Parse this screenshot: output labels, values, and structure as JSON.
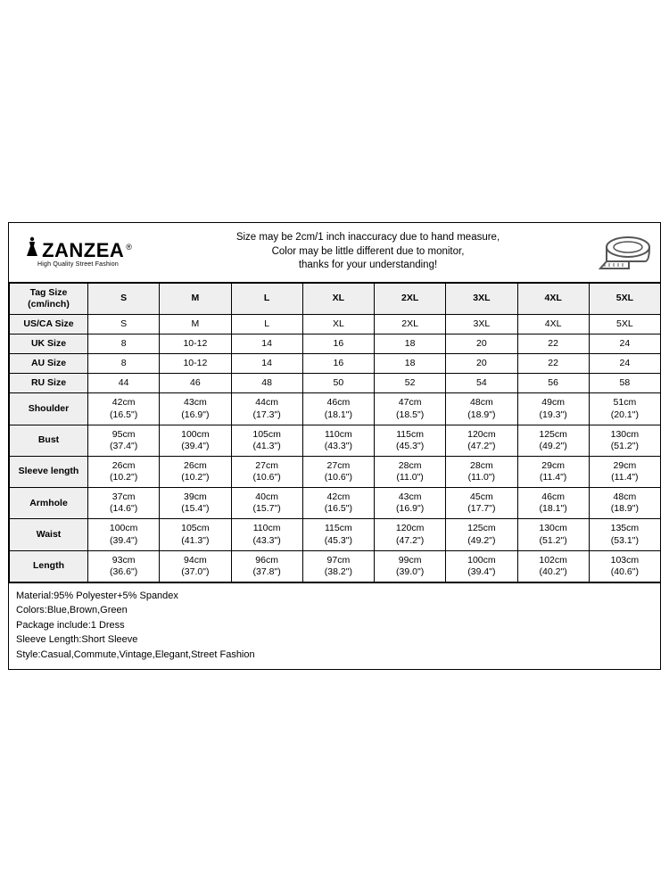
{
  "brand": {
    "name": "ZANZEA",
    "registered": "®",
    "tagline": "High Quality Street Fashion"
  },
  "notice": {
    "line1": "Size may be 2cm/1 inch inaccuracy due to hand measure,",
    "line2": "Color may be little different due to monitor,",
    "line3": "thanks for your understanding!"
  },
  "sizes": [
    "S",
    "M",
    "L",
    "XL",
    "2XL",
    "3XL",
    "4XL",
    "5XL"
  ],
  "header_tag_l1": "Tag Size",
  "header_tag_l2": "(cm/inch)",
  "rows_single": [
    {
      "label": "US/CA Size",
      "vals": [
        "S",
        "M",
        "L",
        "XL",
        "2XL",
        "3XL",
        "4XL",
        "5XL"
      ]
    },
    {
      "label": "UK Size",
      "vals": [
        "8",
        "10-12",
        "14",
        "16",
        "18",
        "20",
        "22",
        "24"
      ]
    },
    {
      "label": "AU Size",
      "vals": [
        "8",
        "10-12",
        "14",
        "16",
        "18",
        "20",
        "22",
        "24"
      ]
    },
    {
      "label": "RU Size",
      "vals": [
        "44",
        "46",
        "48",
        "50",
        "52",
        "54",
        "56",
        "58"
      ]
    }
  ],
  "rows_measure": [
    {
      "label": "Shoulder",
      "cm": [
        "42cm",
        "43cm",
        "44cm",
        "46cm",
        "47cm",
        "48cm",
        "49cm",
        "51cm"
      ],
      "in": [
        "(16.5\")",
        "(16.9\")",
        "(17.3\")",
        "(18.1\")",
        "(18.5\")",
        "(18.9\")",
        "(19.3\")",
        "(20.1\")"
      ]
    },
    {
      "label": "Bust",
      "cm": [
        "95cm",
        "100cm",
        "105cm",
        "110cm",
        "115cm",
        "120cm",
        "125cm",
        "130cm"
      ],
      "in": [
        "(37.4\")",
        "(39.4\")",
        "(41.3\")",
        "(43.3\")",
        "(45.3\")",
        "(47.2\")",
        "(49.2\")",
        "(51.2\")"
      ]
    },
    {
      "label": "Sleeve length",
      "cm": [
        "26cm",
        "26cm",
        "27cm",
        "27cm",
        "28cm",
        "28cm",
        "29cm",
        "29cm"
      ],
      "in": [
        "(10.2\")",
        "(10.2\")",
        "(10.6\")",
        "(10.6\")",
        "(11.0\")",
        "(11.0\")",
        "(11.4\")",
        "(11.4\")"
      ]
    },
    {
      "label": "Armhole",
      "cm": [
        "37cm",
        "39cm",
        "40cm",
        "42cm",
        "43cm",
        "45cm",
        "46cm",
        "48cm"
      ],
      "in": [
        "(14.6\")",
        "(15.4\")",
        "(15.7\")",
        "(16.5\")",
        "(16.9\")",
        "(17.7\")",
        "(18.1\")",
        "(18.9\")"
      ]
    },
    {
      "label": "Waist",
      "cm": [
        "100cm",
        "105cm",
        "110cm",
        "115cm",
        "120cm",
        "125cm",
        "130cm",
        "135cm"
      ],
      "in": [
        "(39.4\")",
        "(41.3\")",
        "(43.3\")",
        "(45.3\")",
        "(47.2\")",
        "(49.2\")",
        "(51.2\")",
        "(53.1\")"
      ]
    },
    {
      "label": "Length",
      "cm": [
        "93cm",
        "94cm",
        "96cm",
        "97cm",
        "99cm",
        "100cm",
        "102cm",
        "103cm"
      ],
      "in": [
        "(36.6\")",
        "(37.0\")",
        "(37.8\")",
        "(38.2\")",
        "(39.0\")",
        "(39.4\")",
        "(40.2\")",
        "(40.6\")"
      ]
    }
  ],
  "details": [
    "Material:95% Polyester+5% Spandex",
    "Colors:Blue,Brown,Green",
    "Package include:1 Dress",
    "Sleeve Length:Short Sleeve",
    "Style:Casual,Commute,Vintage,Elegant,Street Fashion"
  ],
  "style": {
    "border_color": "#000000",
    "header_bg": "#efefef",
    "background": "#ffffff",
    "font_size_cell": 10.5,
    "font_size_note": 11.5,
    "brand_font_size": 22
  }
}
